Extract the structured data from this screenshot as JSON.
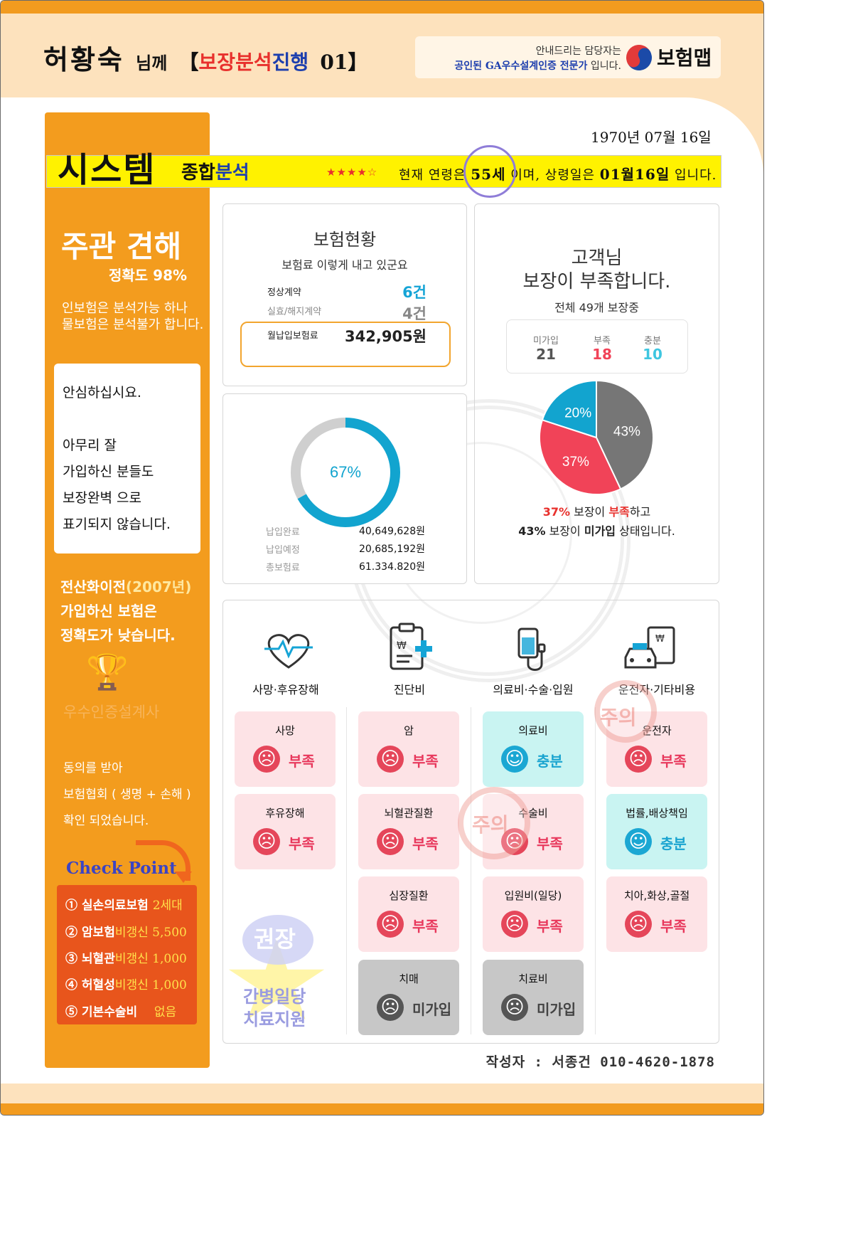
{
  "header": {
    "customer_name": "허황숙",
    "honorific": "님께",
    "bracket_open": "【",
    "report_prefix": "보장분석",
    "report_mid": "진행",
    "report_no": "01",
    "bracket_close": "】",
    "agent_line1": "안내드리는 담당자는",
    "agent_line2_highlight": "공인된 GA우수설계인증 전문가",
    "agent_line2_rest": "입니다.",
    "brand": "보험맵"
  },
  "system": {
    "date": "1970년 07월 16일",
    "title": "시스템",
    "sub_prefix": "종합",
    "sub_highlight": "분석",
    "stars": "★★★★☆",
    "age_prefix": "현재 연령은",
    "age": "55세",
    "age_mid": "이며, 상령일은",
    "anniv": "01월16일",
    "age_suffix": "입니다."
  },
  "left": {
    "opinion_title": "주관 견해",
    "accuracy": "정확도 98%",
    "line1": "인보험은 분석가능 하나",
    "line2": "물보험은 분석불가 합니다.",
    "reassure": [
      "안심하십시요.",
      "아무리 잘",
      "가입하신 분들도",
      "보장완벽 으로",
      "표기되지 않습니다."
    ],
    "era_prefix": "전산화이전",
    "era_year": "(2007년)",
    "era_line2": "가입하신 보험은",
    "era_line3": "정확도가 낮습니다.",
    "cert_faint": "우수인증설계사",
    "consent": [
      "동의를 받아",
      "보험협회 ( 생명 + 손해 )",
      "확인 되었습니다."
    ],
    "checkpoint_label": "Check Point",
    "checkpoints": [
      {
        "label": "① 실손의료보험",
        "value": "2세대"
      },
      {
        "label": "② 암보험",
        "value": "비갱신 5,500"
      },
      {
        "label": "③ 뇌혈관",
        "value": "비갱신 1,000"
      },
      {
        "label": "④ 허혈성",
        "value": "비갱신 1,000"
      },
      {
        "label": "⑤ 기본수술비",
        "value": "없음"
      }
    ],
    "stamp_recommend": "권장",
    "care_line1": "간병일당",
    "care_line2": "치료지원"
  },
  "insurance_status": {
    "title": "보험현황",
    "subtitle": "보험료 이렇게 내고 있군요",
    "normal_label": "정상계약",
    "normal_value": "6건",
    "lapsed_label": "실효/해지계약",
    "lapsed_value": "4건",
    "premium_label": "월납입보험료",
    "premium_value": "342,905원"
  },
  "payment": {
    "percent_label": "67%",
    "paid_label": "납입완료",
    "paid_value": "40,649,628원",
    "due_label": "납입예정",
    "due_value": "20,685,192원",
    "total_label": "총보험료",
    "total_value": "61.334.820원"
  },
  "coverage": {
    "title_line1": "고객님",
    "title_line2": "보장이 부족합니다.",
    "subtitle": "전체 49개 보장중",
    "not_enrolled_label": "미가입",
    "not_enrolled_value": "21",
    "insufficient_label": "부족",
    "insufficient_value": "18",
    "sufficient_label": "충분",
    "sufficient_value": "10",
    "caption1_pct": "37%",
    "caption1_mid": " 보장이 ",
    "caption1_word": "부족",
    "caption1_end": "하고",
    "caption2_pct": "43%",
    "caption2_mid": " 보장이 ",
    "caption2_word": "미가입",
    "caption2_end": " 상태입니다."
  },
  "chart_data": [
    {
      "type": "pie",
      "title": "",
      "slices": [
        {
          "label": "43%",
          "value": 43,
          "color": "#767676"
        },
        {
          "label": "37%",
          "value": 37,
          "color": "#f14358"
        },
        {
          "label": "20%",
          "value": 20,
          "color": "#12a4cf"
        }
      ]
    },
    {
      "type": "pie",
      "title": "",
      "slices": [
        {
          "label": "67%",
          "value": 67,
          "color": "#12a4cf"
        },
        {
          "label": "",
          "value": 33,
          "color": "#cfcfcf"
        }
      ]
    }
  ],
  "categories": [
    {
      "label": "사망·후유장해",
      "icon": "heart-pulse-icon"
    },
    {
      "label": "진단비",
      "icon": "clipboard-medical-icon"
    },
    {
      "label": "의료비·수술·입원",
      "icon": "iv-drip-icon"
    },
    {
      "label": "운전자·기타비용",
      "icon": "car-document-icon"
    }
  ],
  "tiles": {
    "col1": [
      {
        "title": "사망",
        "status": "부족",
        "state": "red"
      },
      {
        "title": "후유장해",
        "status": "부족",
        "state": "red"
      }
    ],
    "col2": [
      {
        "title": "암",
        "status": "부족",
        "state": "red"
      },
      {
        "title": "뇌혈관질환",
        "status": "부족",
        "state": "red"
      },
      {
        "title": "심장질환",
        "status": "부족",
        "state": "red"
      },
      {
        "title": "치매",
        "status": "미가입",
        "state": "dark"
      }
    ],
    "col3": [
      {
        "title": "의료비",
        "status": "충분",
        "state": "blue"
      },
      {
        "title": "수술비",
        "status": "부족",
        "state": "red"
      },
      {
        "title": "입원비(일당)",
        "status": "부족",
        "state": "red"
      },
      {
        "title": "치료비",
        "status": "미가입",
        "state": "dark"
      }
    ],
    "col4": [
      {
        "title": "운전자",
        "status": "부족",
        "state": "red"
      },
      {
        "title": "법률,배상책임",
        "status": "충분",
        "state": "blue"
      },
      {
        "title": "치아,화상,골절",
        "status": "부족",
        "state": "red"
      }
    ]
  },
  "stamps": {
    "caution": "주의"
  },
  "footer": {
    "author": "작성자 : 서종건 010-4620-1878"
  }
}
